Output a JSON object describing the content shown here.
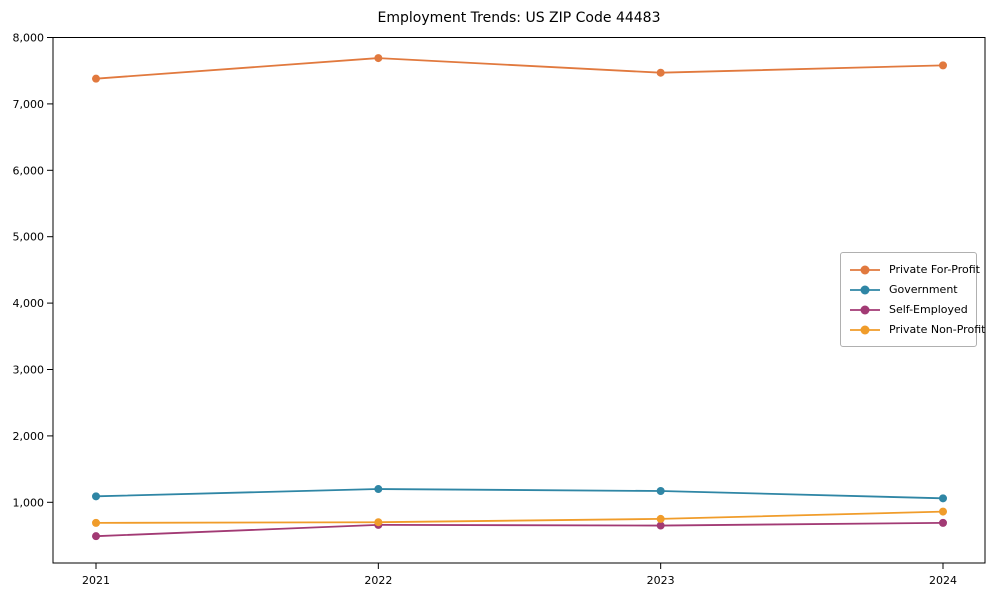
{
  "chart_data": {
    "type": "line",
    "title": "Employment Trends: US ZIP Code 44483",
    "categories": [
      "2021",
      "2022",
      "2023",
      "2024"
    ],
    "series": [
      {
        "name": "Private For-Profit",
        "color": "#e1793e",
        "values": [
          7380,
          7690,
          7470,
          7580
        ]
      },
      {
        "name": "Government",
        "color": "#2f86a5",
        "values": [
          1090,
          1200,
          1170,
          1060
        ]
      },
      {
        "name": "Self-Employed",
        "color": "#a23a74",
        "values": [
          490,
          660,
          650,
          690
        ]
      },
      {
        "name": "Private Non-Profit",
        "color": "#f09c2a",
        "values": [
          690,
          700,
          750,
          860
        ]
      }
    ],
    "yticks": [
      1000,
      2000,
      3000,
      4000,
      5000,
      6000,
      7000,
      8000
    ],
    "ytick_labels": [
      "1,000",
      "2,000",
      "3,000",
      "4,000",
      "5,000",
      "6,000",
      "7,000",
      "8,000"
    ],
    "ylim": [
      80,
      8000
    ],
    "xlabel": "",
    "ylabel": "",
    "grid": false,
    "legend_position": "center right",
    "frame_color": "#000000",
    "text_color": "#000000"
  }
}
